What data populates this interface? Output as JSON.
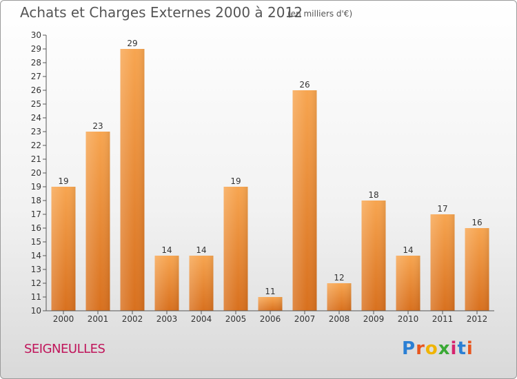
{
  "header": {
    "title": "Achats et Charges Externes 2000 à 2012",
    "unit": "(en milliers d'€)"
  },
  "footer": {
    "town": "SEIGNEULLES",
    "logo_text": "Proxiti",
    "logo_colors": [
      "#2a7fd4",
      "#e8561e",
      "#f0b400",
      "#3aa935",
      "#d6246e",
      "#2a7fd4",
      "#e8561e"
    ]
  },
  "chart_data": {
    "type": "bar",
    "title": "Achats et Charges Externes 2000 à 2012",
    "subtitle": "(en milliers d'€)",
    "xlabel": "",
    "ylabel": "",
    "categories": [
      "2000",
      "2001",
      "2002",
      "2003",
      "2004",
      "2005",
      "2006",
      "2007",
      "2008",
      "2009",
      "2010",
      "2011",
      "2012"
    ],
    "values": [
      19,
      23,
      29,
      14,
      14,
      19,
      11,
      26,
      12,
      18,
      14,
      17,
      16
    ],
    "ylim": [
      10,
      30
    ],
    "yticks": [
      "10",
      "11",
      "12",
      "13",
      "14",
      "15",
      "16",
      "17",
      "18",
      "19",
      "20",
      "21",
      "22",
      "23",
      "24",
      "25",
      "26",
      "27",
      "28",
      "29",
      "30"
    ],
    "grid": false,
    "legend": "none",
    "bar_color_top": "#f7a550",
    "bar_color_bottom": "#d8701e"
  }
}
